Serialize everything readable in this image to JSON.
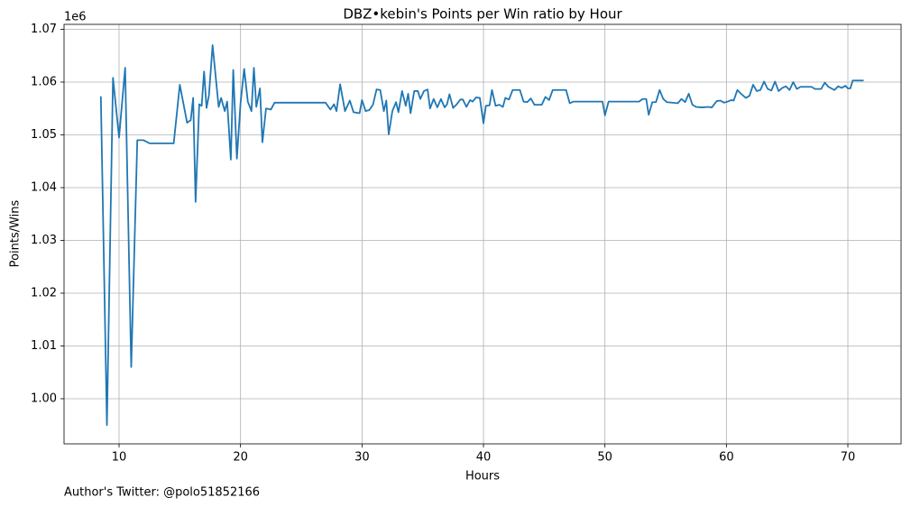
{
  "chart_data": {
    "type": "line",
    "title": "DBZ•kebin's Points per Win ratio by Hour",
    "xlabel": "Hours",
    "ylabel": "Points/Wins",
    "y_offset_label": "1e6",
    "footnote": "Author's Twitter: @polo51852166",
    "xlim": [
      5.47,
      74.38
    ],
    "ylim": [
      0.99145,
      1.07094
    ],
    "xticks": [
      10,
      20,
      30,
      40,
      50,
      60,
      70
    ],
    "yticks": [
      {
        "value": 1.0,
        "label": "1.00"
      },
      {
        "value": 1.01,
        "label": "1.01"
      },
      {
        "value": 1.02,
        "label": "1.02"
      },
      {
        "value": 1.03,
        "label": "1.03"
      },
      {
        "value": 1.04,
        "label": "1.04"
      },
      {
        "value": 1.05,
        "label": "1.05"
      },
      {
        "value": 1.06,
        "label": "1.06"
      },
      {
        "value": 1.07,
        "label": "1.07"
      }
    ],
    "grid": true,
    "x": [
      8.5,
      9.0,
      9.5,
      10.0,
      10.5,
      11.0,
      11.5,
      12.0,
      12.5,
      13.0,
      14.0,
      14.5,
      15.0,
      15.6,
      15.9,
      16.1,
      16.3,
      16.6,
      16.8,
      17.0,
      17.2,
      17.4,
      17.7,
      18.2,
      18.4,
      18.7,
      18.9,
      19.2,
      19.4,
      19.7,
      20.0,
      20.3,
      20.6,
      20.9,
      21.1,
      21.3,
      21.6,
      21.8,
      22.1,
      22.5,
      22.8,
      27.0,
      27.4,
      27.7,
      27.9,
      28.2,
      28.6,
      29.0,
      29.3,
      29.8,
      30.0,
      30.3,
      30.6,
      30.9,
      31.2,
      31.5,
      31.8,
      32.0,
      32.2,
      32.5,
      32.8,
      33.0,
      33.3,
      33.6,
      33.8,
      34.0,
      34.3,
      34.6,
      34.8,
      35.1,
      35.4,
      35.6,
      35.9,
      36.2,
      36.5,
      36.8,
      37.0,
      37.2,
      37.5,
      37.8,
      38.1,
      38.3,
      38.6,
      38.9,
      39.1,
      39.4,
      39.7,
      40.0,
      40.2,
      40.5,
      40.7,
      41.0,
      41.3,
      41.6,
      41.8,
      42.1,
      42.4,
      43.0,
      43.3,
      43.6,
      43.9,
      44.2,
      44.8,
      45.1,
      45.4,
      45.7,
      46.8,
      47.1,
      47.4,
      49.8,
      50.0,
      50.3,
      52.8,
      53.1,
      53.4,
      53.6,
      53.9,
      54.2,
      54.5,
      54.8,
      55.1,
      56.0,
      56.3,
      56.6,
      56.9,
      57.2,
      57.5,
      58.0,
      58.5,
      58.8,
      59.2,
      59.5,
      59.8,
      60.1,
      60.4,
      60.6,
      60.9,
      61.2,
      61.6,
      61.9,
      62.2,
      62.5,
      62.8,
      63.1,
      63.4,
      63.7,
      64.0,
      64.3,
      64.6,
      64.9,
      65.2,
      65.5,
      65.8,
      66.1,
      67.0,
      67.3,
      67.8,
      68.1,
      68.4,
      68.9,
      69.2,
      69.5,
      69.8,
      70.0,
      70.2,
      70.4,
      71.3
    ],
    "series": [
      {
        "name": "Points/Wins",
        "color": "#1f77b4",
        "values": [
          1.0573,
          0.995,
          1.0608,
          1.0495,
          1.0627,
          1.006,
          1.049,
          1.049,
          1.0484,
          1.0484,
          1.0484,
          1.0484,
          1.0595,
          1.0523,
          1.0528,
          1.057,
          1.0373,
          1.0558,
          1.0555,
          1.062,
          1.0551,
          1.0575,
          1.067,
          1.0553,
          1.057,
          1.0545,
          1.0563,
          1.0453,
          1.0623,
          1.0455,
          1.056,
          1.0625,
          1.0563,
          1.0545,
          1.0627,
          1.0553,
          1.0588,
          1.0486,
          1.055,
          1.0548,
          1.0561,
          1.0561,
          1.0548,
          1.0558,
          1.0545,
          1.0596,
          1.0545,
          1.0565,
          1.0543,
          1.0541,
          1.0566,
          1.0545,
          1.0547,
          1.0557,
          1.0586,
          1.0585,
          1.0545,
          1.0565,
          1.0501,
          1.0545,
          1.0562,
          1.0543,
          1.0583,
          1.0555,
          1.0578,
          1.0541,
          1.0583,
          1.0583,
          1.0568,
          1.0583,
          1.0586,
          1.055,
          1.0568,
          1.0552,
          1.0568,
          1.0552,
          1.0558,
          1.0577,
          1.0551,
          1.0558,
          1.0567,
          1.0567,
          1.0553,
          1.0566,
          1.0563,
          1.0571,
          1.057,
          1.0522,
          1.0555,
          1.0556,
          1.0585,
          1.0555,
          1.0557,
          1.0553,
          1.057,
          1.0567,
          1.0585,
          1.0585,
          1.0563,
          1.0562,
          1.0569,
          1.0557,
          1.0557,
          1.0572,
          1.0566,
          1.0585,
          1.0585,
          1.056,
          1.0563,
          1.0563,
          1.0537,
          1.0563,
          1.0563,
          1.0568,
          1.0568,
          1.0538,
          1.0562,
          1.0562,
          1.0585,
          1.0568,
          1.0562,
          1.056,
          1.0568,
          1.0562,
          1.0578,
          1.0557,
          1.0553,
          1.0552,
          1.0553,
          1.0552,
          1.0564,
          1.0565,
          1.0561,
          1.0563,
          1.0566,
          1.0565,
          1.0585,
          1.0578,
          1.057,
          1.0574,
          1.0595,
          1.0583,
          1.0585,
          1.0601,
          1.0587,
          1.0584,
          1.0601,
          1.0583,
          1.0589,
          1.0592,
          1.0585,
          1.06,
          1.0587,
          1.0591,
          1.0591,
          1.0587,
          1.0587,
          1.0599,
          1.0591,
          1.0585,
          1.0592,
          1.0589,
          1.0593,
          1.0588,
          1.0588,
          1.0603,
          1.0603
        ]
      }
    ]
  }
}
